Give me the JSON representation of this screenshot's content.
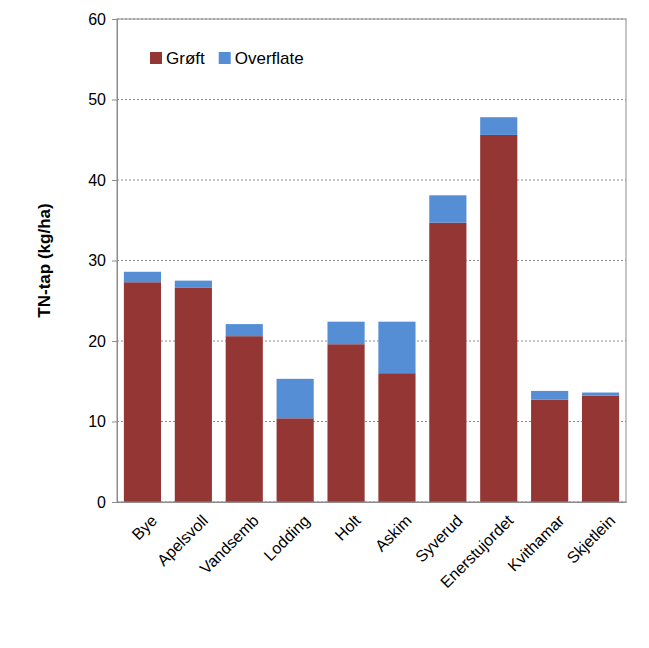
{
  "chart_data": {
    "type": "bar",
    "stacked": true,
    "y_label": "TN-tap (kg/ha)",
    "categories": [
      "Bye",
      "Apelsvoll",
      "Vandsemb",
      "Lodding",
      "Holt",
      "Askim",
      "Syverud",
      "Enerstujordet",
      "Kvithamar",
      "Skjetlein"
    ],
    "series": [
      {
        "name": "Grøft",
        "color": "#943634",
        "values": [
          27.3,
          26.6,
          20.6,
          10.4,
          19.6,
          16.0,
          34.7,
          45.6,
          12.7,
          13.2
        ]
      },
      {
        "name": "Overflate",
        "color": "#558ed5",
        "values": [
          1.3,
          0.9,
          1.5,
          4.9,
          2.8,
          6.4,
          3.4,
          2.2,
          1.1,
          0.4
        ]
      }
    ],
    "ylim": [
      0,
      60
    ],
    "yticks": [
      0,
      10,
      20,
      30,
      40,
      50,
      60
    ],
    "grid": true,
    "legend": "top-left"
  }
}
